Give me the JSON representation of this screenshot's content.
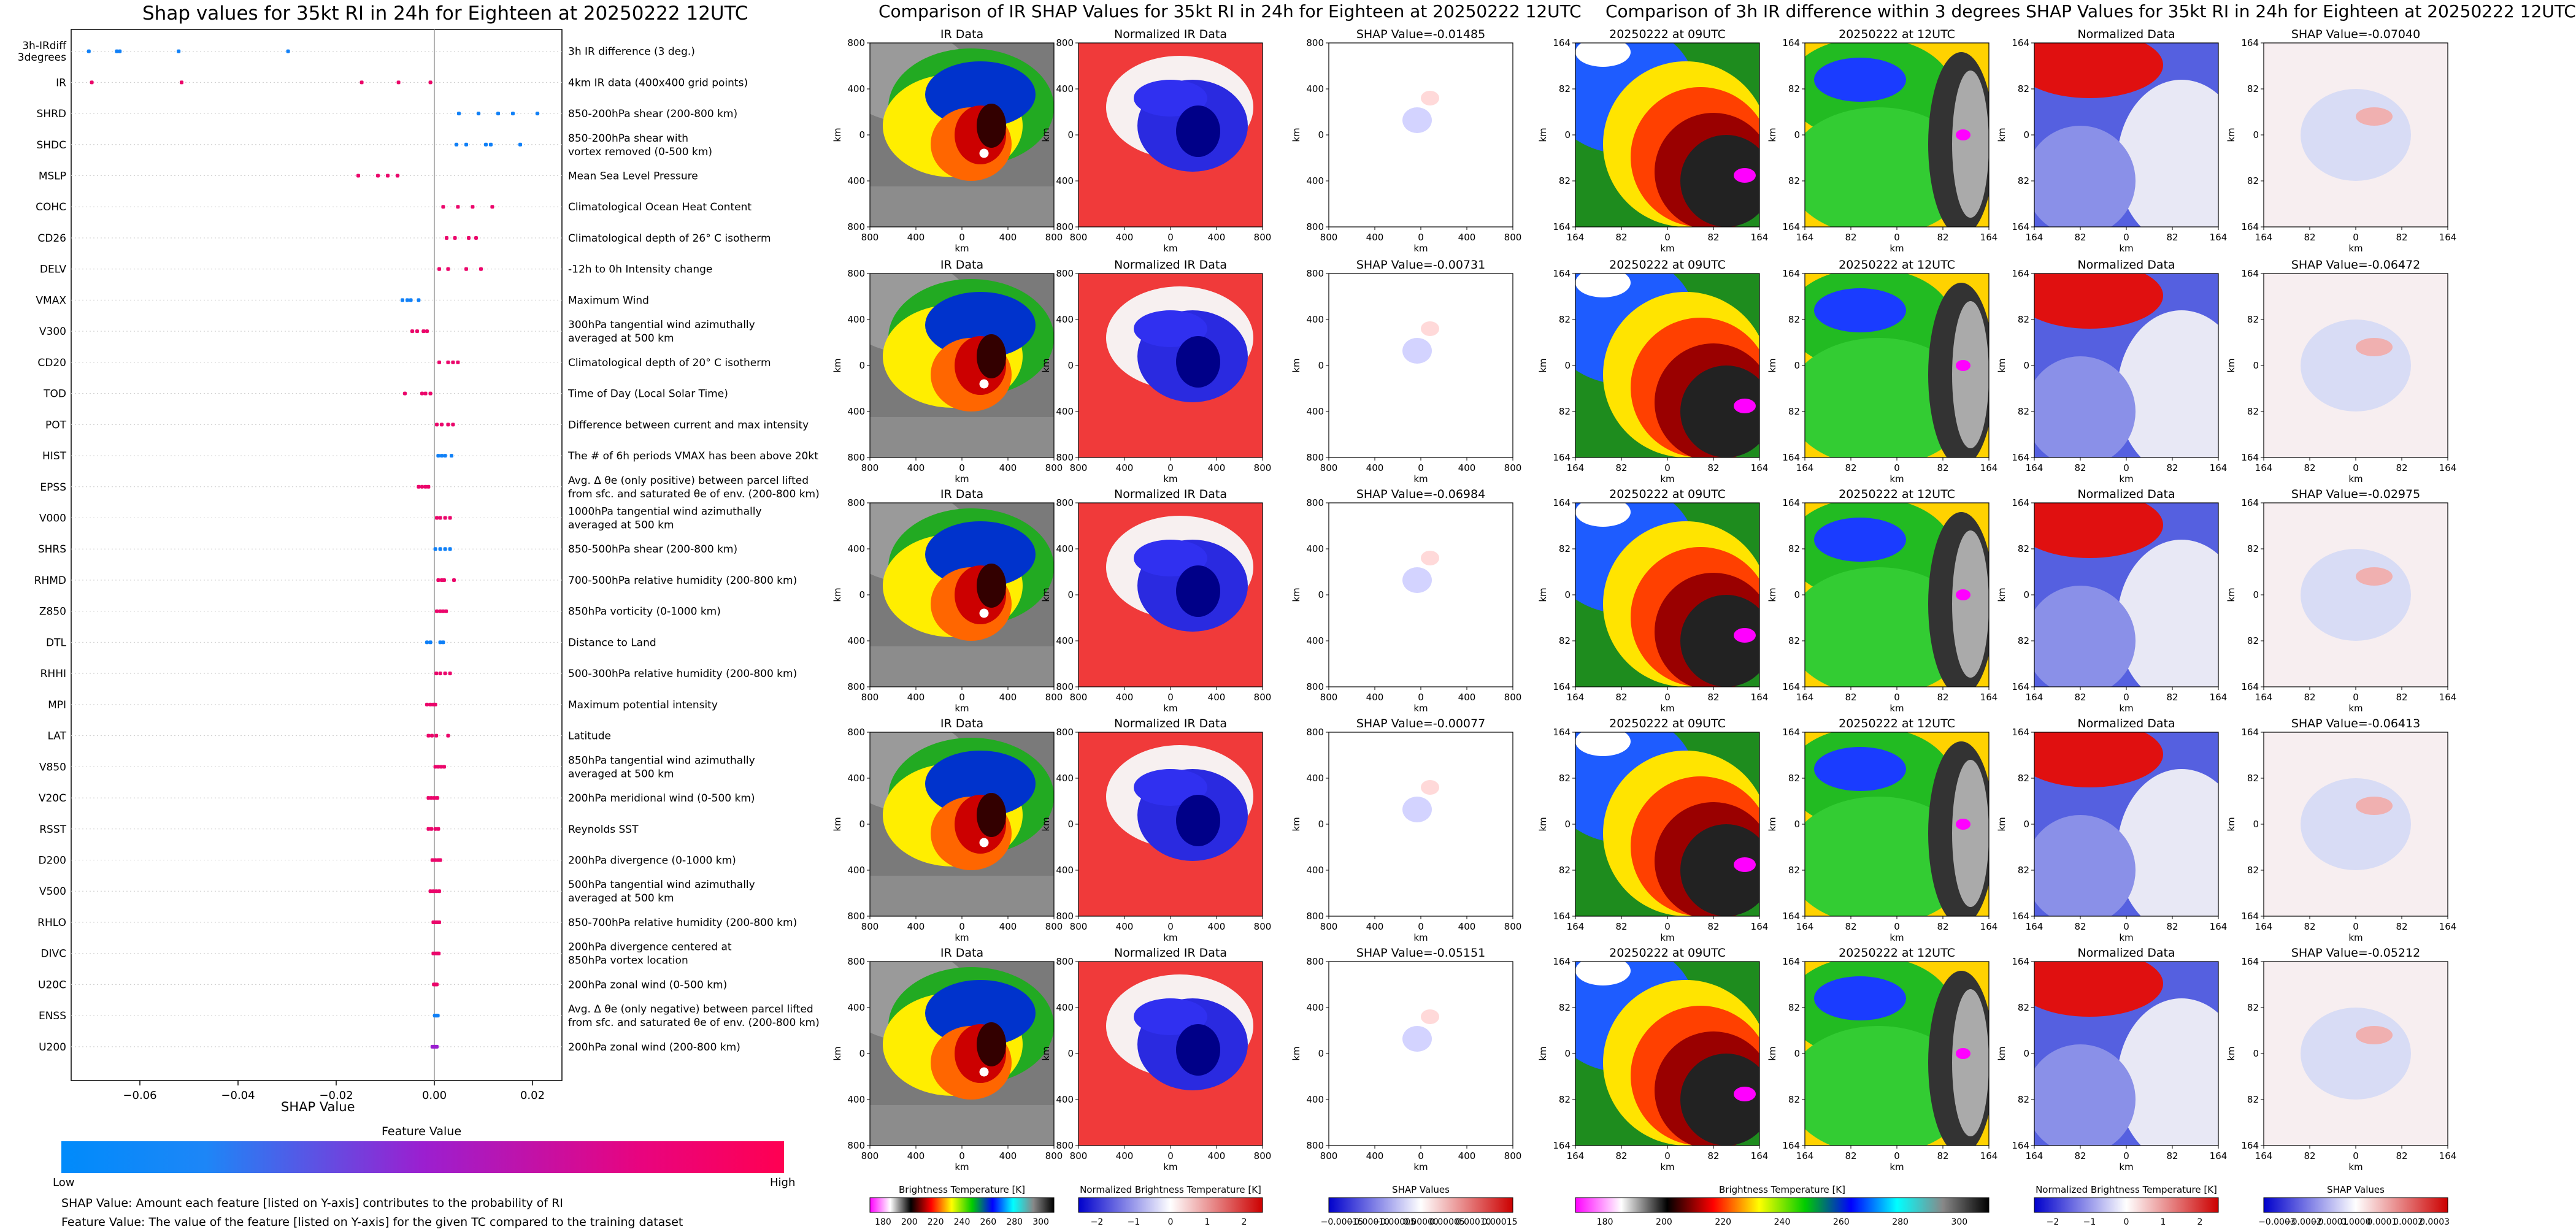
{
  "left_panel": {
    "title": "Shap values for 35kt RI in 24h for Eighteen at 20250222 12UTC",
    "xlabel": "SHAP Value",
    "colorbar_title": "Feature Value",
    "colorbar_low": "Low",
    "colorbar_high": "High",
    "note1": "SHAP Value: Amount each feature [listed on Y-axis] contributes to the probability of RI",
    "note2": "Feature Value: The value of the feature [listed on Y-axis] for the given TC compared to the training dataset"
  },
  "middle_panel": {
    "title": "Comparison of IR SHAP Values for 35kt RI in 24h for Eighteen at 20250222 12UTC",
    "col_titles": [
      "IR Data",
      "Normalized IR Data"
    ],
    "shap_titles": [
      "SHAP Value=-0.01485",
      "SHAP Value=-0.00731",
      "SHAP Value=-0.06984",
      "SHAP Value=-0.00077",
      "SHAP Value=-0.05151"
    ],
    "axis_label": "km",
    "ticks": [
      "800",
      "400",
      "0",
      "400",
      "800"
    ],
    "colorbars": [
      {
        "label": "Brightness Temperature [K]",
        "ticks": [
          "180",
          "200",
          "220",
          "240",
          "260",
          "280",
          "300"
        ]
      },
      {
        "label": "Normalized Brightness Temperature [K]",
        "ticks": [
          "−2",
          "−1",
          "0",
          "1",
          "2"
        ]
      },
      {
        "label": "SHAP Values",
        "ticks": [
          "−0.00015",
          "−0.00010",
          "−0.00005",
          "0.00000",
          "0.00005",
          "0.00010",
          "0.00015"
        ]
      }
    ]
  },
  "right_panel": {
    "title": "Comparison of 3h IR difference within 3 degrees SHAP Values for 35kt RI in 24h for Eighteen at 20250222 12UTC",
    "col_titles": [
      "20250222 at 09UTC",
      "20250222 at 12UTC",
      "Normalized Data"
    ],
    "shap_titles": [
      "SHAP Value=-0.07040",
      "SHAP Value=-0.06472",
      "SHAP Value=-0.02975",
      "SHAP Value=-0.06413",
      "SHAP Value=-0.05212"
    ],
    "axis_label": "km",
    "ticks": [
      "164",
      "82",
      "0",
      "82",
      "164"
    ],
    "colorbars": [
      {
        "label": "Brightness Temperature [K]",
        "ticks": [
          "180",
          "200",
          "220",
          "240",
          "260",
          "280",
          "300"
        ]
      },
      {
        "label": "Normalized Brightness Temperature [K]",
        "ticks": [
          "−2",
          "−1",
          "0",
          "1",
          "2"
        ]
      },
      {
        "label": "SHAP Values",
        "ticks": [
          "−0.0003",
          "−0.0002",
          "−0.0001",
          "0.0000",
          "0.0001",
          "0.0002",
          "0.0003"
        ]
      }
    ]
  },
  "colors": {
    "low": "#008bfb",
    "mid": "#9b1fd0",
    "high": "#ff0052"
  },
  "chart_data": {
    "type": "scatter",
    "title": "Shap values for 35kt RI in 24h for Eighteen at 20250222 12UTC",
    "xlabel": "SHAP Value",
    "xlim": [
      -0.074,
      0.026
    ],
    "xticks": [
      "−0.06",
      "−0.04",
      "−0.02",
      "0.00",
      "0.02"
    ],
    "xtick_values": [
      -0.06,
      -0.04,
      -0.02,
      0.0,
      0.02
    ],
    "features": [
      {
        "name": "3h-IRdiff\n3degrees",
        "desc": "3h IR difference (3 deg.)",
        "points": [
          [
            -0.0704,
            0.05
          ],
          [
            -0.0647,
            0.05
          ],
          [
            -0.0641,
            0.05
          ],
          [
            -0.0521,
            0.05
          ],
          [
            -0.0298,
            0.05
          ]
        ]
      },
      {
        "name": "IR",
        "desc": "4km IR data (400x400 grid points)",
        "points": [
          [
            -0.0698,
            0.9
          ],
          [
            -0.0515,
            0.9
          ],
          [
            -0.0148,
            0.9
          ],
          [
            -0.0073,
            0.9
          ],
          [
            -0.0008,
            0.9
          ]
        ]
      },
      {
        "name": "SHRD",
        "desc": "850-200hPa shear (200-800 km)",
        "points": [
          [
            0.005,
            0.05
          ],
          [
            0.009,
            0.05
          ],
          [
            0.013,
            0.05
          ],
          [
            0.016,
            0.05
          ],
          [
            0.021,
            0.05
          ]
        ]
      },
      {
        "name": "SHDC",
        "desc": "850-200hPa shear with\nvortex removed (0-500 km)",
        "points": [
          [
            0.0045,
            0.05
          ],
          [
            0.0065,
            0.05
          ],
          [
            0.0105,
            0.05
          ],
          [
            0.0115,
            0.05
          ],
          [
            0.0175,
            0.05
          ]
        ]
      },
      {
        "name": "MSLP",
        "desc": "Mean Sea Level Pressure",
        "points": [
          [
            -0.0155,
            0.9
          ],
          [
            -0.0115,
            0.9
          ],
          [
            -0.0095,
            0.9
          ],
          [
            -0.0075,
            0.9
          ]
        ]
      },
      {
        "name": "COHC",
        "desc": "Climatological Ocean Heat Content",
        "points": [
          [
            0.0018,
            0.9
          ],
          [
            0.0048,
            0.9
          ],
          [
            0.0078,
            0.9
          ],
          [
            0.0118,
            0.9
          ]
        ]
      },
      {
        "name": "CD26",
        "desc": "Climatological depth of 26° C isotherm",
        "points": [
          [
            0.0025,
            0.9
          ],
          [
            0.0042,
            0.9
          ],
          [
            0.007,
            0.9
          ],
          [
            0.0085,
            0.9
          ]
        ]
      },
      {
        "name": "DELV",
        "desc": "-12h to 0h Intensity change",
        "points": [
          [
            0.001,
            0.9
          ],
          [
            0.0028,
            0.9
          ],
          [
            0.0065,
            0.9
          ],
          [
            0.0095,
            0.9
          ]
        ]
      },
      {
        "name": "VMAX",
        "desc": "Maximum Wind",
        "points": [
          [
            -0.0065,
            0.05
          ],
          [
            -0.0055,
            0.05
          ],
          [
            -0.0048,
            0.05
          ],
          [
            -0.0032,
            0.05
          ]
        ]
      },
      {
        "name": "V300",
        "desc": "300hPa tangential wind azimuthally\naveraged at 500 km",
        "points": [
          [
            -0.0045,
            0.9
          ],
          [
            -0.0035,
            0.9
          ],
          [
            -0.0022,
            0.9
          ],
          [
            -0.0015,
            0.9
          ]
        ]
      },
      {
        "name": "CD20",
        "desc": "Climatological depth of 20° C isotherm",
        "points": [
          [
            0.001,
            0.9
          ],
          [
            0.0028,
            0.9
          ],
          [
            0.0038,
            0.9
          ],
          [
            0.0048,
            0.9
          ]
        ]
      },
      {
        "name": "TOD",
        "desc": "Time of Day (Local Solar Time)",
        "points": [
          [
            -0.006,
            0.9
          ],
          [
            -0.0025,
            0.9
          ],
          [
            -0.0018,
            0.9
          ],
          [
            -0.0008,
            0.9
          ]
        ]
      },
      {
        "name": "POT",
        "desc": "Difference between current and max intensity",
        "points": [
          [
            0.0005,
            0.9
          ],
          [
            0.0015,
            0.9
          ],
          [
            0.0028,
            0.9
          ],
          [
            0.0038,
            0.9
          ]
        ]
      },
      {
        "name": "HIST",
        "desc": "The # of 6h periods VMAX has been above 20kt",
        "points": [
          [
            0.0008,
            0.05
          ],
          [
            0.0015,
            0.05
          ],
          [
            0.0022,
            0.05
          ],
          [
            0.0035,
            0.05
          ]
        ]
      },
      {
        "name": "EPSS",
        "desc": "Avg. Δ θe (only positive) between parcel lifted\nfrom sfc. and saturated θe of env. (200-800 km)",
        "points": [
          [
            -0.0032,
            0.9
          ],
          [
            -0.0025,
            0.9
          ],
          [
            -0.0018,
            0.9
          ],
          [
            -0.0012,
            0.9
          ]
        ]
      },
      {
        "name": "V000",
        "desc": "1000hPa tangential wind azimuthally\naveraged at 500 km",
        "points": [
          [
            0.0005,
            0.9
          ],
          [
            0.0012,
            0.9
          ],
          [
            0.0022,
            0.9
          ],
          [
            0.0032,
            0.9
          ]
        ]
      },
      {
        "name": "SHRS",
        "desc": "850-500hPa shear (200-800 km)",
        "points": [
          [
            0.0002,
            0.05
          ],
          [
            0.0012,
            0.05
          ],
          [
            0.0022,
            0.05
          ],
          [
            0.0032,
            0.05
          ]
        ]
      },
      {
        "name": "RHMD",
        "desc": "700-500hPa relative humidity (200-800 km)",
        "points": [
          [
            0.0008,
            0.9
          ],
          [
            0.0015,
            0.9
          ],
          [
            0.002,
            0.9
          ],
          [
            0.004,
            0.9
          ]
        ]
      },
      {
        "name": "Z850",
        "desc": "850hPa vorticity (0-1000 km)",
        "points": [
          [
            0.0005,
            0.9
          ],
          [
            0.0012,
            0.9
          ],
          [
            0.0018,
            0.9
          ],
          [
            0.0024,
            0.9
          ]
        ]
      },
      {
        "name": "DTL",
        "desc": "Distance to Land",
        "points": [
          [
            -0.0015,
            0.05
          ],
          [
            -0.0008,
            0.05
          ],
          [
            0.0012,
            0.05
          ],
          [
            0.0018,
            0.05
          ]
        ]
      },
      {
        "name": "RHHI",
        "desc": "500-300hPa relative humidity (200-800 km)",
        "points": [
          [
            0.0004,
            0.9
          ],
          [
            0.0012,
            0.9
          ],
          [
            0.0022,
            0.9
          ],
          [
            0.0032,
            0.9
          ]
        ]
      },
      {
        "name": "MPI",
        "desc": "Maximum potential intensity",
        "points": [
          [
            -0.0015,
            0.9
          ],
          [
            -0.0008,
            0.9
          ],
          [
            -0.0002,
            0.9
          ],
          [
            0.0002,
            0.9
          ]
        ]
      },
      {
        "name": "LAT",
        "desc": "Latitude",
        "points": [
          [
            -0.0012,
            0.9
          ],
          [
            -0.0005,
            0.9
          ],
          [
            0.0004,
            0.9
          ],
          [
            0.0028,
            0.9
          ]
        ]
      },
      {
        "name": "V850",
        "desc": "850hPa tangential wind azimuthally\naveraged at 500 km",
        "points": [
          [
            0.0002,
            0.9
          ],
          [
            0.0008,
            0.9
          ],
          [
            0.0014,
            0.9
          ],
          [
            0.002,
            0.9
          ]
        ]
      },
      {
        "name": "V20C",
        "desc": "200hPa meridional wind (0-500 km)",
        "points": [
          [
            -0.0012,
            0.9
          ],
          [
            -0.0006,
            0.9
          ],
          [
            0.0,
            0.9
          ],
          [
            0.0006,
            0.9
          ]
        ]
      },
      {
        "name": "RSST",
        "desc": "Reynolds SST",
        "points": [
          [
            -0.0012,
            0.9
          ],
          [
            -0.0006,
            0.9
          ],
          [
            0.0002,
            0.9
          ],
          [
            0.0008,
            0.9
          ]
        ]
      },
      {
        "name": "D200",
        "desc": "200hPa divergence (0-1000 km)",
        "points": [
          [
            -0.0004,
            0.9
          ],
          [
            0.0002,
            0.9
          ],
          [
            0.0008,
            0.9
          ],
          [
            0.0012,
            0.9
          ]
        ]
      },
      {
        "name": "V500",
        "desc": "500hPa tangential wind azimuthally\naveraged at 500 km",
        "points": [
          [
            -0.0008,
            0.9
          ],
          [
            -0.0002,
            0.9
          ],
          [
            0.0004,
            0.9
          ],
          [
            0.001,
            0.9
          ]
        ]
      },
      {
        "name": "RHLO",
        "desc": "850-700hPa relative humidity (200-800 km)",
        "points": [
          [
            -0.0002,
            0.9
          ],
          [
            0.0002,
            0.9
          ],
          [
            0.0006,
            0.9
          ],
          [
            0.001,
            0.9
          ]
        ]
      },
      {
        "name": "DIVC",
        "desc": "200hPa divergence centered at\n850hPa vortex location",
        "points": [
          [
            -0.0002,
            0.9
          ],
          [
            0.0002,
            0.9
          ],
          [
            0.0006,
            0.9
          ],
          [
            0.0009,
            0.9
          ]
        ]
      },
      {
        "name": "U20C",
        "desc": "200hPa zonal wind (0-500 km)",
        "points": [
          [
            -0.0001,
            0.9
          ],
          [
            0.0001,
            0.9
          ],
          [
            0.0003,
            0.9
          ],
          [
            0.0005,
            0.9
          ]
        ]
      },
      {
        "name": "ENSS",
        "desc": "Avg. Δ θe (only negative) between parcel lifted\nfrom sfc. and saturated θe of env. (200-800 km)",
        "points": [
          [
            0.0001,
            0.05
          ],
          [
            0.0003,
            0.05
          ],
          [
            0.0005,
            0.05
          ],
          [
            0.0007,
            0.05
          ]
        ]
      },
      {
        "name": "U200",
        "desc": "200hPa zonal wind (200-800 km)",
        "points": [
          [
            -0.0004,
            0.5
          ],
          [
            -0.0001,
            0.5
          ],
          [
            0.0002,
            0.5
          ],
          [
            0.0005,
            0.5
          ]
        ]
      }
    ]
  }
}
